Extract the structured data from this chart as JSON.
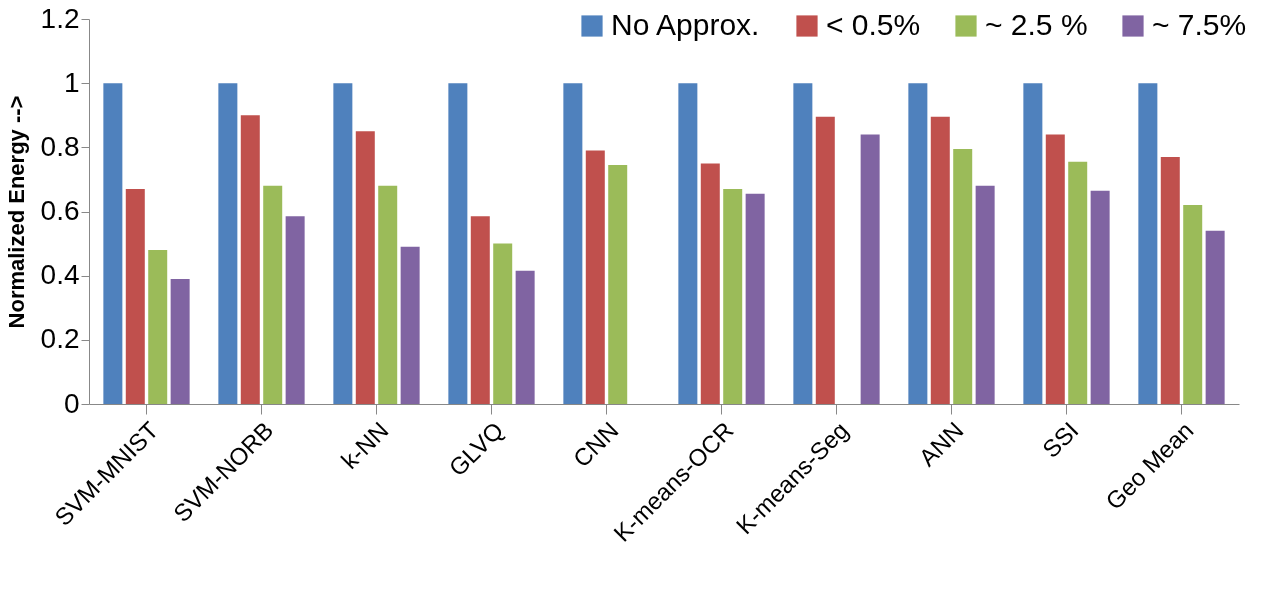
{
  "chart_data": {
    "type": "bar",
    "ylabel": "Normalized Energy -->",
    "categories": [
      "SVM-MNIST",
      "SVM-NORB",
      "k-NN",
      "GLVQ",
      "CNN",
      "K-means-OCR",
      "K-means-Seg",
      "ANN",
      "SSI",
      "Geo Mean"
    ],
    "series": [
      {
        "name": "No Approx.",
        "color": "#4f81bd",
        "values": [
          1,
          1,
          1,
          1,
          1,
          1,
          1,
          1,
          1,
          1
        ]
      },
      {
        "name": "< 0.5%",
        "color": "#c0504d",
        "values": [
          0.67,
          0.9,
          0.85,
          0.585,
          0.79,
          0.75,
          0.895,
          0.895,
          0.84,
          0.77
        ]
      },
      {
        "name": "~ 2.5 %",
        "color": "#9bbb59",
        "values": [
          0.48,
          0.68,
          0.68,
          0.5,
          0.745,
          0.67,
          null,
          0.795,
          0.755,
          0.62
        ]
      },
      {
        "name": "~ 7.5%",
        "color": "#8064a2",
        "values": [
          0.39,
          0.585,
          0.49,
          0.415,
          null,
          0.655,
          0.84,
          0.68,
          0.665,
          0.54
        ]
      }
    ],
    "ylim": [
      0,
      1.2
    ],
    "yticks": [
      0,
      0.2,
      0.4,
      0.6,
      0.8,
      1,
      1.2
    ],
    "grid": false,
    "legend": "top right"
  }
}
